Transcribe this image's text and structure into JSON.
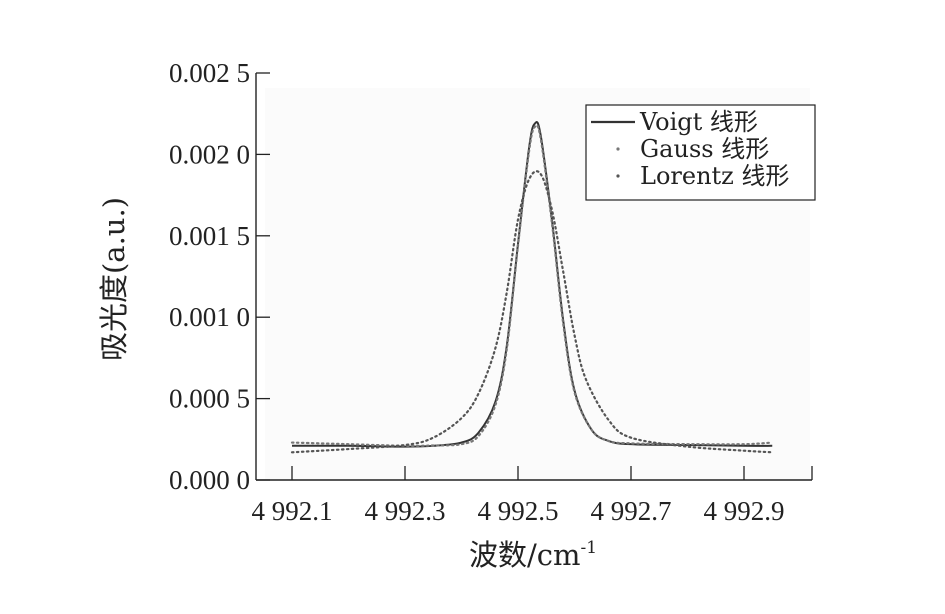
{
  "chart_data": {
    "type": "line",
    "xlabel": "波数/cm",
    "xlabel_superscript": "-1",
    "ylabel": "吸光度(a.u.)",
    "xlim": [
      4992.05,
      4992.98
    ],
    "ylim": [
      0,
      0.0025
    ],
    "x_ticks": [
      4992.1,
      4992.3,
      4992.5,
      4992.7,
      4992.9
    ],
    "x_tick_labels": [
      "4 992.1",
      "4 992.3",
      "4 992.5",
      "4 992.7",
      "4 992.9"
    ],
    "y_ticks": [
      0,
      0.0005,
      0.001,
      0.0015,
      0.002,
      0.0025
    ],
    "y_tick_labels": [
      "0.000 0",
      "0.000 5",
      "0.001 0",
      "0.001 5",
      "0.002 0",
      "0.002 5"
    ],
    "legend_position": "top-right",
    "grid": false,
    "series": [
      {
        "name": "Voigt 线形",
        "style": "solid",
        "color": "#333333",
        "x": [
          4992.1,
          4992.2,
          4992.3,
          4992.35,
          4992.4,
          4992.43,
          4992.46,
          4992.48,
          4992.5,
          4992.52,
          4992.53,
          4992.54,
          4992.56,
          4992.58,
          4992.6,
          4992.63,
          4992.66,
          4992.7,
          4992.8,
          4992.9,
          4992.95
        ],
        "y": [
          0.00021,
          0.00021,
          0.000205,
          0.00021,
          0.00023,
          0.00029,
          0.00048,
          0.00082,
          0.00145,
          0.00205,
          0.00219,
          0.00212,
          0.0016,
          0.00098,
          0.00055,
          0.00031,
          0.00024,
          0.00022,
          0.000215,
          0.00021,
          0.00021
        ]
      },
      {
        "name": "Gauss 线形",
        "style": "dotted",
        "color": "#777777",
        "x": [
          4992.1,
          4992.2,
          4992.3,
          4992.35,
          4992.4,
          4992.43,
          4992.46,
          4992.48,
          4992.5,
          4992.52,
          4992.53,
          4992.54,
          4992.56,
          4992.58,
          4992.6,
          4992.63,
          4992.66,
          4992.7,
          4992.8,
          4992.9,
          4992.95
        ],
        "y": [
          0.00023,
          0.00022,
          0.00021,
          0.000212,
          0.00022,
          0.00027,
          0.00046,
          0.0008,
          0.00144,
          0.00203,
          0.00217,
          0.0021,
          0.00158,
          0.00096,
          0.00054,
          0.00031,
          0.00024,
          0.000225,
          0.00022,
          0.00022,
          0.00023
        ]
      },
      {
        "name": "Lorentz 线形",
        "style": "dotted",
        "color": "#555555",
        "x": [
          4992.1,
          4992.2,
          4992.3,
          4992.35,
          4992.4,
          4992.43,
          4992.46,
          4992.48,
          4992.5,
          4992.52,
          4992.54,
          4992.56,
          4992.58,
          4992.6,
          4992.62,
          4992.66,
          4992.7,
          4992.8,
          4992.9,
          4992.95
        ],
        "y": [
          0.00017,
          0.00019,
          0.000215,
          0.00026,
          0.00038,
          0.00053,
          0.00081,
          0.00115,
          0.0016,
          0.00185,
          0.00188,
          0.00166,
          0.00128,
          0.00089,
          0.00062,
          0.00037,
          0.00026,
          0.000205,
          0.00018,
          0.00017
        ]
      }
    ]
  }
}
